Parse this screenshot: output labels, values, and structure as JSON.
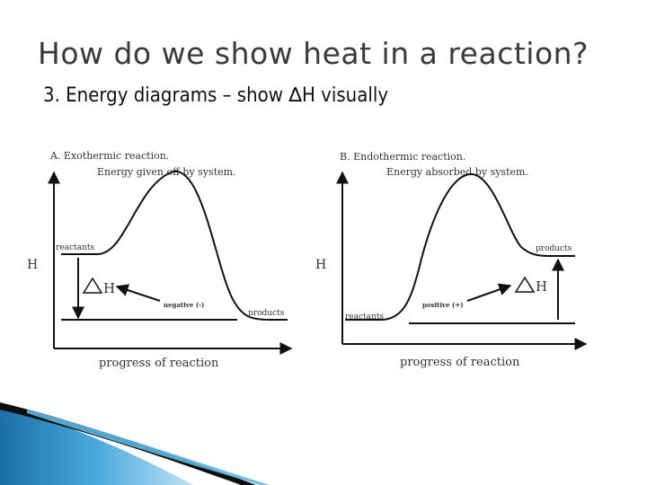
{
  "slide": {
    "title": "How do we show heat in a reaction?",
    "bullet_number": "3.",
    "bullet_text_before": "Energy diagrams – show ",
    "bullet_delta": "∆",
    "bullet_text_after": "H visually"
  },
  "diagram_a": {
    "caption_line1": "A.  Exothermic reaction.",
    "caption_line2": "Energy given off by system.",
    "y_axis_label": "H",
    "reactants_label": "reactants",
    "products_label": "products",
    "delta_h_label": "H",
    "sign_label": "negative (-)",
    "x_axis_label": "progress of reaction"
  },
  "diagram_b": {
    "caption_line1": "B.  Endothermic reaction.",
    "caption_line2": "Energy absorbed by system.",
    "y_axis_label": "H",
    "reactants_label": "reactants",
    "products_label": "products",
    "delta_h_label": "H",
    "sign_label": "positive (+)",
    "x_axis_label": "progress of reaction"
  },
  "colors": {
    "title": "#3a3a3a",
    "accent_blue": "#2d8fc8",
    "accent_dark": "#0d0d0d"
  }
}
